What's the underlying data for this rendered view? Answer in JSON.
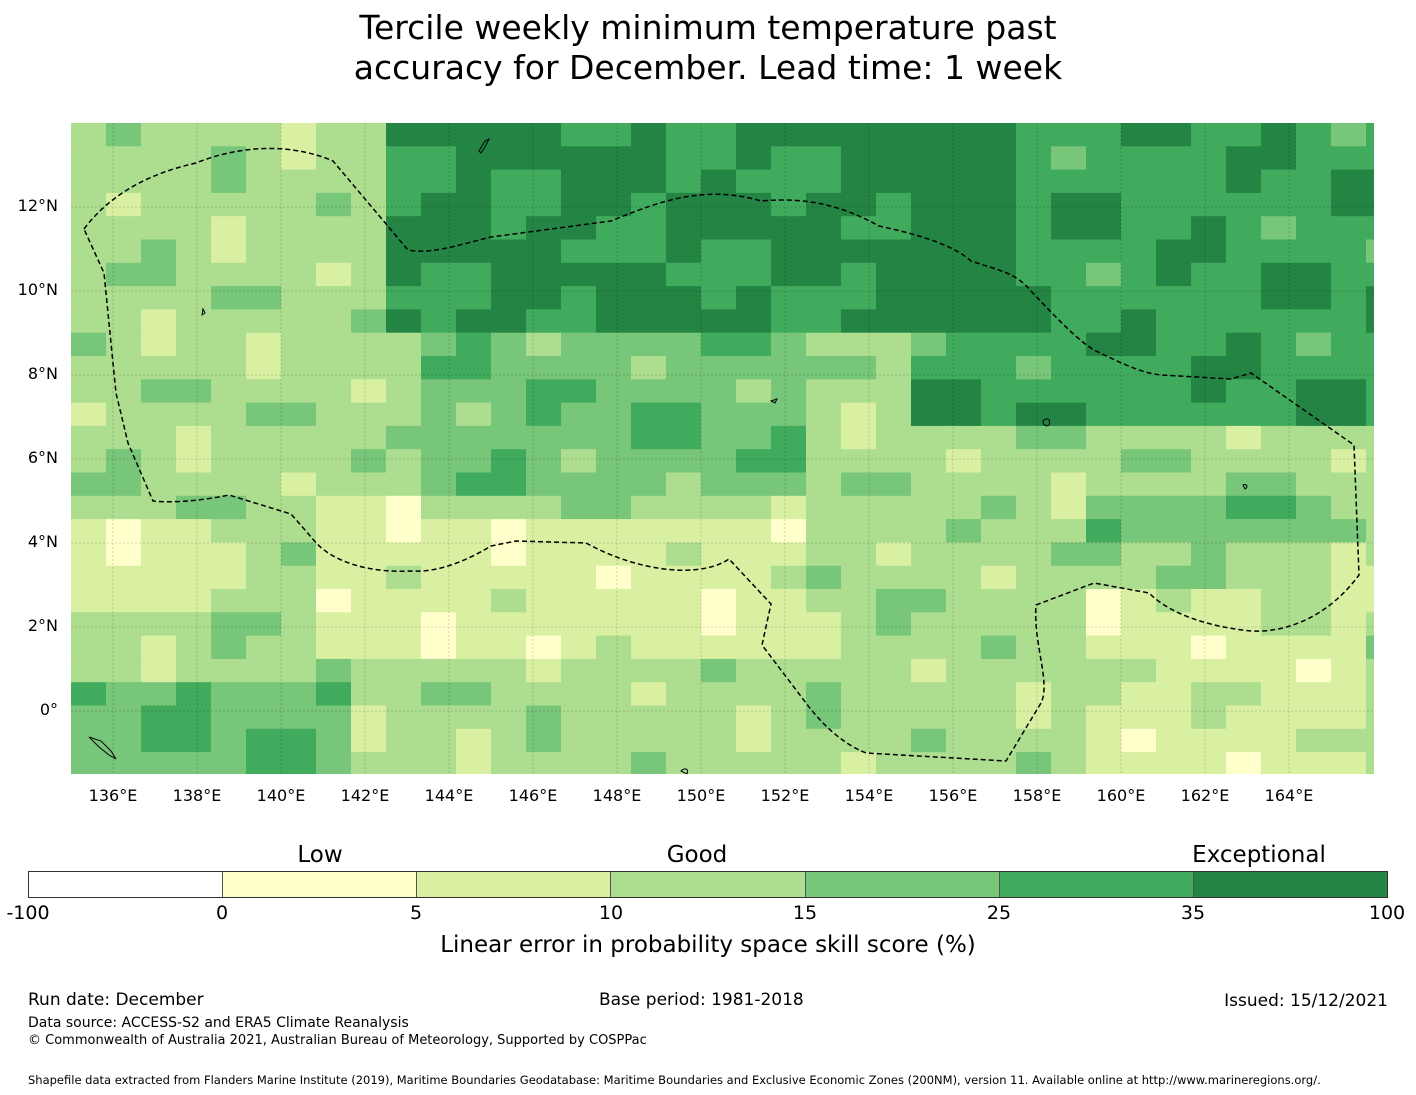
{
  "title": {
    "line1": "Tercile weekly minimum temperature past",
    "line2": "accuracy for December. Lead time: 1 week"
  },
  "map": {
    "lat_labels": [
      "12°N",
      "10°N",
      "8°N",
      "6°N",
      "4°N",
      "2°N",
      "0°"
    ],
    "lon_labels": [
      "136°E",
      "138°E",
      "140°E",
      "142°E",
      "144°E",
      "146°E",
      "148°E",
      "150°E",
      "152°E",
      "154°E",
      "156°E",
      "158°E",
      "160°E",
      "162°E",
      "164°E"
    ],
    "lat_range": [
      -1.6,
      13.9
    ],
    "lon_range": [
      135.0,
      166.0
    ]
  },
  "legend": {
    "categories": {
      "low": "Low",
      "good": "Good",
      "exceptional": "Exceptional"
    },
    "ticks": [
      "-100",
      "0",
      "5",
      "10",
      "15",
      "25",
      "35",
      "100"
    ],
    "colors": [
      "#ffffff",
      "#ffffcc",
      "#d9f0a3",
      "#addd8e",
      "#78c679",
      "#41ab5d",
      "#238443"
    ],
    "label": "Linear error in probability space skill score (%)"
  },
  "footer": {
    "run_date": "Run date: December",
    "base_period": "Base period: 1981-2018",
    "issued": "Issued: 15/12/2021",
    "data_source": "Data source: ACCESS-S2 and ERA5 Climate Reanalysis",
    "copyright": "© Commonwealth of Australia 2021, Australian Bureau of Meteorology, Supported by COSPPac",
    "shapefile": "Shapefile data extracted from Flanders Marine Institute (2019), Maritime Boundaries Geodatabase: Maritime Boundaries and Exclusive Economic Zones (200NM), version 11. Available online at http://www.marineregions.org/."
  }
}
